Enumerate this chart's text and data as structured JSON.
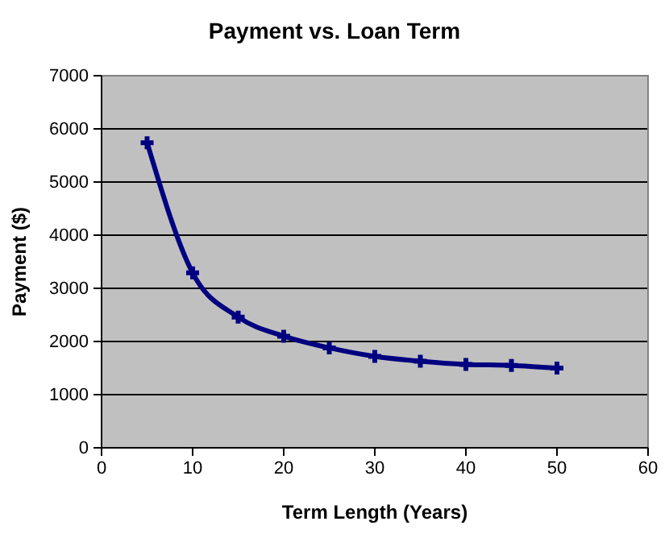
{
  "chart_data": {
    "type": "line",
    "title": "Payment vs. Loan Term",
    "xlabel": "Term Length (Years)",
    "ylabel": "Payment ($)",
    "x": [
      5,
      10,
      15,
      20,
      25,
      30,
      35,
      40,
      45,
      50
    ],
    "series": [
      {
        "color": "#000080",
        "values": [
          5740,
          3290,
          2460,
          2100,
          1880,
          1720,
          1630,
          1570,
          1550,
          1500
        ]
      }
    ],
    "xlim": [
      0,
      60
    ],
    "xticks": [
      0,
      10,
      20,
      30,
      40,
      50,
      60
    ],
    "ylim": [
      0,
      7000
    ],
    "yticks": [
      0,
      1000,
      2000,
      3000,
      4000,
      5000,
      6000,
      7000
    ],
    "grid": "y",
    "marker": "cross",
    "line_style": "solid"
  }
}
